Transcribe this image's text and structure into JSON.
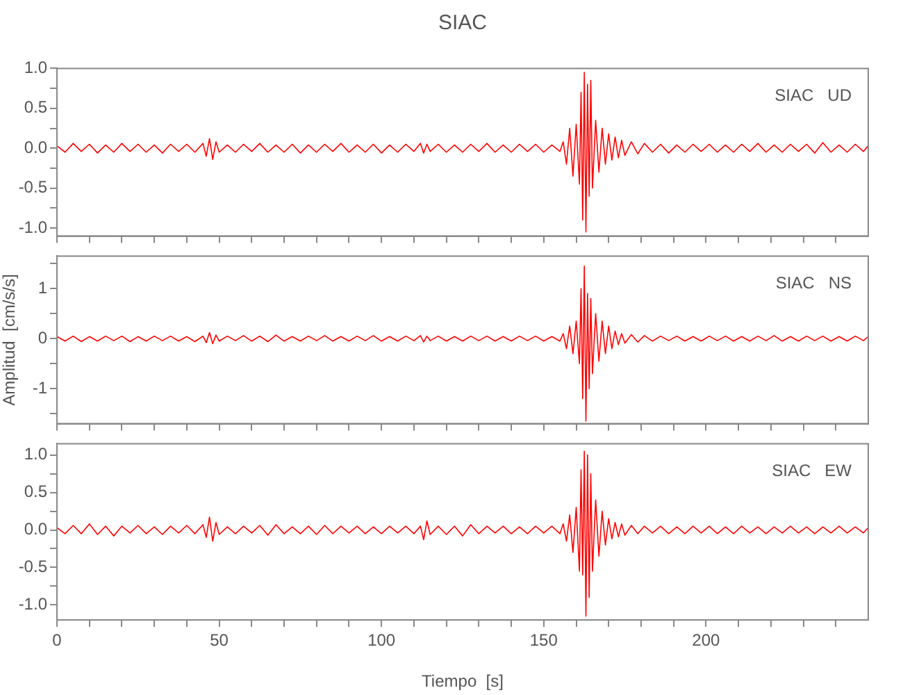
{
  "chart_data": [
    {
      "type": "line",
      "title": "SIAC",
      "annotations": [
        "SIAC   UD"
      ],
      "marker": "none",
      "grid": false,
      "legend": false,
      "tick_labels": "y",
      "xlim": [
        0,
        250
      ],
      "xticks": [
        0,
        {
          "value": 10,
          "label": null
        },
        {
          "value": 20,
          "label": null
        },
        {
          "value": 30,
          "label": null
        },
        {
          "value": 40,
          "label": null
        },
        50,
        {
          "value": 60,
          "label": null
        },
        {
          "value": 70,
          "label": null
        },
        {
          "value": 80,
          "label": null
        },
        {
          "value": 90,
          "label": null
        },
        100,
        {
          "value": 110,
          "label": null
        },
        {
          "value": 120,
          "label": null
        },
        {
          "value": 130,
          "label": null
        },
        {
          "value": 140,
          "label": null
        },
        150,
        {
          "value": 160,
          "label": null
        },
        {
          "value": 170,
          "label": null
        },
        {
          "value": 180,
          "label": null
        },
        {
          "value": 190,
          "label": null
        },
        200,
        {
          "value": 210,
          "label": null
        },
        {
          "value": 220,
          "label": null
        },
        {
          "value": 230,
          "label": null
        },
        {
          "value": 240,
          "label": null
        }
      ],
      "ylim": [
        -1.1,
        1.0
      ],
      "yticks": [
        {
          "value": -1.0,
          "label": "-1.0"
        },
        {
          "value": -0.75,
          "label": null
        },
        {
          "value": -0.5,
          "label": "-0.5"
        },
        {
          "value": -0.25,
          "label": null
        },
        {
          "value": 0,
          "label": "0.0"
        },
        {
          "value": 0.25,
          "label": null
        },
        {
          "value": 0.5,
          "label": "0.5"
        },
        {
          "value": 0.75,
          "label": null
        },
        {
          "value": 1.0,
          "label": "1.0"
        }
      ],
      "x": [
        0,
        2.5,
        5,
        7.5,
        10,
        12.5,
        15,
        17.5,
        20,
        22.5,
        25,
        27.5,
        30,
        32.5,
        35,
        37.5,
        40,
        42.5,
        45,
        46,
        47,
        48,
        49,
        50,
        52.5,
        55,
        57.5,
        60,
        62.5,
        65,
        67.5,
        70,
        72.5,
        75,
        77.5,
        80,
        82.5,
        85,
        87.5,
        90,
        92.5,
        95,
        97.5,
        100,
        102.5,
        105,
        107.5,
        110,
        112,
        113,
        114,
        115,
        117.5,
        120,
        122.5,
        125,
        127.5,
        130,
        132.5,
        135,
        137.5,
        140,
        142.5,
        145,
        147.5,
        150,
        152.5,
        155,
        156,
        157,
        158,
        159,
        160,
        161,
        161.5,
        162,
        162.5,
        163,
        163.5,
        164,
        164.5,
        165,
        166,
        167,
        168,
        169,
        170,
        171,
        172,
        173,
        174,
        175,
        177,
        179,
        181,
        183.5,
        186,
        188.5,
        191,
        193.5,
        196,
        198.5,
        201,
        203.5,
        206,
        208.5,
        211,
        213.5,
        216,
        218.5,
        221,
        223.5,
        226,
        228.5,
        231,
        233.5,
        236,
        238.5,
        241,
        243.5,
        246,
        248.5,
        250
      ],
      "series": [
        {
          "color": "#ff0000",
          "values": [
            0.03,
            -0.05,
            0.06,
            -0.04,
            0.05,
            -0.06,
            0.04,
            -0.05,
            0.06,
            -0.04,
            0.05,
            -0.05,
            0.04,
            -0.06,
            0.05,
            -0.04,
            0.05,
            -0.05,
            0.06,
            -0.1,
            0.12,
            -0.14,
            0.08,
            -0.05,
            0.04,
            -0.05,
            0.05,
            -0.04,
            0.06,
            -0.05,
            0.04,
            -0.05,
            0.05,
            -0.06,
            0.04,
            -0.05,
            0.05,
            -0.04,
            0.06,
            -0.05,
            0.04,
            -0.05,
            0.05,
            -0.06,
            0.04,
            -0.05,
            0.05,
            -0.04,
            0.06,
            -0.06,
            0.05,
            -0.04,
            0.05,
            -0.05,
            0.04,
            -0.05,
            0.05,
            -0.04,
            0.06,
            -0.05,
            0.04,
            -0.05,
            0.05,
            -0.04,
            0.05,
            -0.05,
            0.04,
            -0.04,
            0.08,
            -0.2,
            0.25,
            -0.35,
            0.3,
            -0.45,
            0.7,
            -0.9,
            0.95,
            -1.05,
            0.8,
            -0.6,
            0.85,
            -0.5,
            0.35,
            -0.3,
            0.25,
            -0.2,
            0.18,
            -0.15,
            0.14,
            -0.12,
            0.1,
            -0.09,
            0.08,
            -0.07,
            0.06,
            -0.05,
            0.05,
            -0.06,
            0.04,
            -0.05,
            0.05,
            -0.04,
            0.05,
            -0.05,
            0.04,
            -0.05,
            0.05,
            -0.04,
            0.06,
            -0.05,
            0.04,
            -0.05,
            0.05,
            -0.04,
            0.05,
            -0.06,
            0.07,
            -0.05,
            0.04,
            -0.05,
            0.05,
            -0.04,
            0.03
          ]
        }
      ]
    },
    {
      "type": "line",
      "ylabel": "Amplitud  [cm/s/s]",
      "annotations": [
        "SIAC   NS"
      ],
      "marker": "none",
      "grid": false,
      "legend": false,
      "tick_labels": "y",
      "xlim": [
        0,
        250
      ],
      "xticks": [
        0,
        {
          "value": 10,
          "label": null
        },
        {
          "value": 20,
          "label": null
        },
        {
          "value": 30,
          "label": null
        },
        {
          "value": 40,
          "label": null
        },
        50,
        {
          "value": 60,
          "label": null
        },
        {
          "value": 70,
          "label": null
        },
        {
          "value": 80,
          "label": null
        },
        {
          "value": 90,
          "label": null
        },
        100,
        {
          "value": 110,
          "label": null
        },
        {
          "value": 120,
          "label": null
        },
        {
          "value": 130,
          "label": null
        },
        {
          "value": 140,
          "label": null
        },
        150,
        {
          "value": 160,
          "label": null
        },
        {
          "value": 170,
          "label": null
        },
        {
          "value": 180,
          "label": null
        },
        {
          "value": 190,
          "label": null
        },
        200,
        {
          "value": 210,
          "label": null
        },
        {
          "value": 220,
          "label": null
        },
        {
          "value": 230,
          "label": null
        },
        {
          "value": 240,
          "label": null
        }
      ],
      "ylim": [
        -1.7,
        1.65
      ],
      "yticks": [
        {
          "value": -1.5,
          "label": null
        },
        -1,
        {
          "value": -0.5,
          "label": null
        },
        0,
        {
          "value": 0.5,
          "label": null
        },
        1,
        {
          "value": 1.5,
          "label": null
        }
      ],
      "x": [
        0,
        2.5,
        5,
        7.5,
        10,
        12.5,
        15,
        17.5,
        20,
        22.5,
        25,
        27.5,
        30,
        32.5,
        35,
        37.5,
        40,
        42.5,
        45,
        46,
        47,
        48,
        49,
        50,
        52.5,
        55,
        57.5,
        60,
        62.5,
        65,
        67.5,
        70,
        72.5,
        75,
        77.5,
        80,
        82.5,
        85,
        87.5,
        90,
        92.5,
        95,
        97.5,
        100,
        102.5,
        105,
        107.5,
        110,
        112,
        113,
        114,
        115,
        117.5,
        120,
        122.5,
        125,
        127.5,
        130,
        132.5,
        135,
        137.5,
        140,
        142.5,
        145,
        147.5,
        150,
        152.5,
        155,
        156,
        157,
        158,
        159,
        160,
        161,
        161.5,
        162,
        162.5,
        163,
        163.5,
        164,
        164.5,
        165,
        166,
        167,
        168,
        169,
        170,
        171,
        172,
        173,
        174,
        175,
        177,
        179,
        181,
        183.5,
        186,
        188.5,
        191,
        193.5,
        196,
        198.5,
        201,
        203.5,
        206,
        208.5,
        211,
        213.5,
        216,
        218.5,
        221,
        223.5,
        226,
        228.5,
        231,
        233.5,
        236,
        238.5,
        241,
        243.5,
        246,
        248.5,
        250
      ],
      "series": [
        {
          "color": "#ff0000",
          "values": [
            0.04,
            -0.05,
            0.05,
            -0.06,
            0.04,
            -0.05,
            0.05,
            -0.04,
            0.05,
            -0.06,
            0.04,
            -0.05,
            0.05,
            -0.04,
            0.05,
            -0.05,
            0.04,
            -0.06,
            0.05,
            -0.08,
            0.12,
            -0.1,
            0.07,
            -0.05,
            0.05,
            -0.04,
            0.06,
            -0.05,
            0.05,
            -0.06,
            0.07,
            -0.05,
            0.04,
            -0.05,
            0.05,
            -0.04,
            0.06,
            -0.05,
            0.04,
            -0.05,
            0.05,
            -0.04,
            0.06,
            -0.05,
            0.04,
            -0.05,
            0.05,
            -0.04,
            0.06,
            -0.07,
            0.05,
            -0.04,
            0.05,
            -0.05,
            0.04,
            -0.05,
            0.05,
            -0.04,
            0.05,
            -0.05,
            0.04,
            -0.05,
            0.05,
            -0.04,
            0.05,
            -0.05,
            0.04,
            -0.05,
            0.1,
            -0.2,
            0.25,
            -0.3,
            0.35,
            -0.5,
            1.0,
            -1.2,
            1.45,
            -1.65,
            0.9,
            -1.0,
            0.8,
            -0.7,
            0.5,
            -0.45,
            0.35,
            -0.3,
            0.25,
            -0.2,
            0.15,
            -0.12,
            0.1,
            -0.09,
            0.08,
            -0.07,
            0.06,
            -0.05,
            0.05,
            -0.04,
            0.05,
            -0.05,
            0.04,
            -0.05,
            0.05,
            -0.04,
            0.05,
            -0.05,
            0.04,
            -0.05,
            0.05,
            -0.04,
            0.06,
            -0.05,
            0.04,
            -0.05,
            0.05,
            -0.04,
            0.05,
            -0.05,
            0.04,
            -0.05,
            0.05,
            -0.04,
            0.04
          ]
        }
      ]
    },
    {
      "type": "line",
      "xlabel": "Tiempo  [s]",
      "annotations": [
        "SIAC   EW"
      ],
      "marker": "none",
      "grid": false,
      "legend": false,
      "xlim": [
        0,
        250
      ],
      "xticks": [
        0,
        {
          "value": 10,
          "label": null
        },
        {
          "value": 20,
          "label": null
        },
        {
          "value": 30,
          "label": null
        },
        {
          "value": 40,
          "label": null
        },
        50,
        {
          "value": 60,
          "label": null
        },
        {
          "value": 70,
          "label": null
        },
        {
          "value": 80,
          "label": null
        },
        {
          "value": 90,
          "label": null
        },
        100,
        {
          "value": 110,
          "label": null
        },
        {
          "value": 120,
          "label": null
        },
        {
          "value": 130,
          "label": null
        },
        {
          "value": 140,
          "label": null
        },
        150,
        {
          "value": 160,
          "label": null
        },
        {
          "value": 170,
          "label": null
        },
        {
          "value": 180,
          "label": null
        },
        {
          "value": 190,
          "label": null
        },
        200,
        {
          "value": 210,
          "label": null
        },
        {
          "value": 220,
          "label": null
        },
        {
          "value": 230,
          "label": null
        },
        {
          "value": 240,
          "label": null
        }
      ],
      "ylim": [
        -1.2,
        1.15
      ],
      "yticks": [
        {
          "value": -1.0,
          "label": "-1.0"
        },
        {
          "value": -0.75,
          "label": null
        },
        {
          "value": -0.5,
          "label": "-0.5"
        },
        {
          "value": -0.25,
          "label": null
        },
        {
          "value": 0,
          "label": "0.0"
        },
        {
          "value": 0.25,
          "label": null
        },
        {
          "value": 0.5,
          "label": "0.5"
        },
        {
          "value": 0.75,
          "label": null
        },
        {
          "value": 1.0,
          "label": "1.0"
        }
      ],
      "x": [
        0,
        2.5,
        5,
        7.5,
        10,
        12.5,
        15,
        17.5,
        20,
        22.5,
        25,
        27.5,
        30,
        32.5,
        35,
        37.5,
        40,
        42.5,
        45,
        46,
        47,
        48,
        49,
        50,
        52.5,
        55,
        57.5,
        60,
        62.5,
        65,
        67.5,
        70,
        72.5,
        75,
        77.5,
        80,
        82.5,
        85,
        87.5,
        90,
        92.5,
        95,
        97.5,
        100,
        102.5,
        105,
        107.5,
        110,
        112,
        113,
        114,
        115,
        117.5,
        120,
        122.5,
        125,
        127.5,
        130,
        132.5,
        135,
        137.5,
        140,
        142.5,
        145,
        147.5,
        150,
        152.5,
        155,
        156,
        157,
        158,
        159,
        160,
        161,
        161.5,
        162,
        162.5,
        163,
        163.5,
        164,
        164.5,
        165,
        166,
        167,
        168,
        169,
        170,
        171,
        172,
        173,
        174,
        175,
        177,
        179,
        181,
        183.5,
        186,
        188.5,
        191,
        193.5,
        196,
        198.5,
        201,
        203.5,
        206,
        208.5,
        211,
        213.5,
        216,
        218.5,
        221,
        223.5,
        226,
        228.5,
        231,
        233.5,
        236,
        238.5,
        241,
        243.5,
        246,
        248.5,
        250
      ],
      "series": [
        {
          "color": "#ff0000",
          "values": [
            0.03,
            -0.05,
            0.06,
            -0.05,
            0.08,
            -0.06,
            0.05,
            -0.08,
            0.05,
            -0.04,
            0.06,
            -0.05,
            0.04,
            -0.06,
            0.05,
            -0.04,
            0.06,
            -0.05,
            0.07,
            -0.1,
            0.17,
            -0.15,
            0.1,
            -0.06,
            0.04,
            -0.05,
            0.05,
            -0.04,
            0.06,
            -0.07,
            0.07,
            -0.05,
            0.04,
            -0.05,
            0.05,
            -0.06,
            0.06,
            -0.05,
            0.05,
            -0.04,
            0.05,
            -0.05,
            0.04,
            -0.05,
            0.05,
            -0.04,
            0.05,
            -0.05,
            0.05,
            -0.13,
            0.12,
            -0.06,
            0.05,
            -0.06,
            0.05,
            -0.08,
            0.07,
            -0.05,
            0.05,
            -0.04,
            0.05,
            -0.05,
            0.04,
            -0.05,
            0.05,
            -0.04,
            0.05,
            -0.05,
            0.08,
            -0.15,
            0.2,
            -0.3,
            0.3,
            -0.55,
            0.8,
            -0.6,
            1.05,
            -1.15,
            1.0,
            -0.9,
            0.75,
            -0.55,
            0.4,
            -0.35,
            0.25,
            -0.2,
            0.15,
            -0.12,
            0.1,
            -0.09,
            0.08,
            -0.07,
            0.06,
            -0.05,
            0.05,
            -0.04,
            0.05,
            -0.05,
            0.04,
            -0.05,
            0.05,
            -0.04,
            0.05,
            -0.05,
            0.04,
            -0.05,
            0.05,
            -0.04,
            0.04,
            -0.05,
            0.04,
            -0.04,
            0.05,
            -0.04,
            0.04,
            -0.05,
            0.04,
            -0.04,
            0.05,
            -0.04,
            0.04,
            -0.04,
            0.03
          ]
        }
      ]
    }
  ]
}
